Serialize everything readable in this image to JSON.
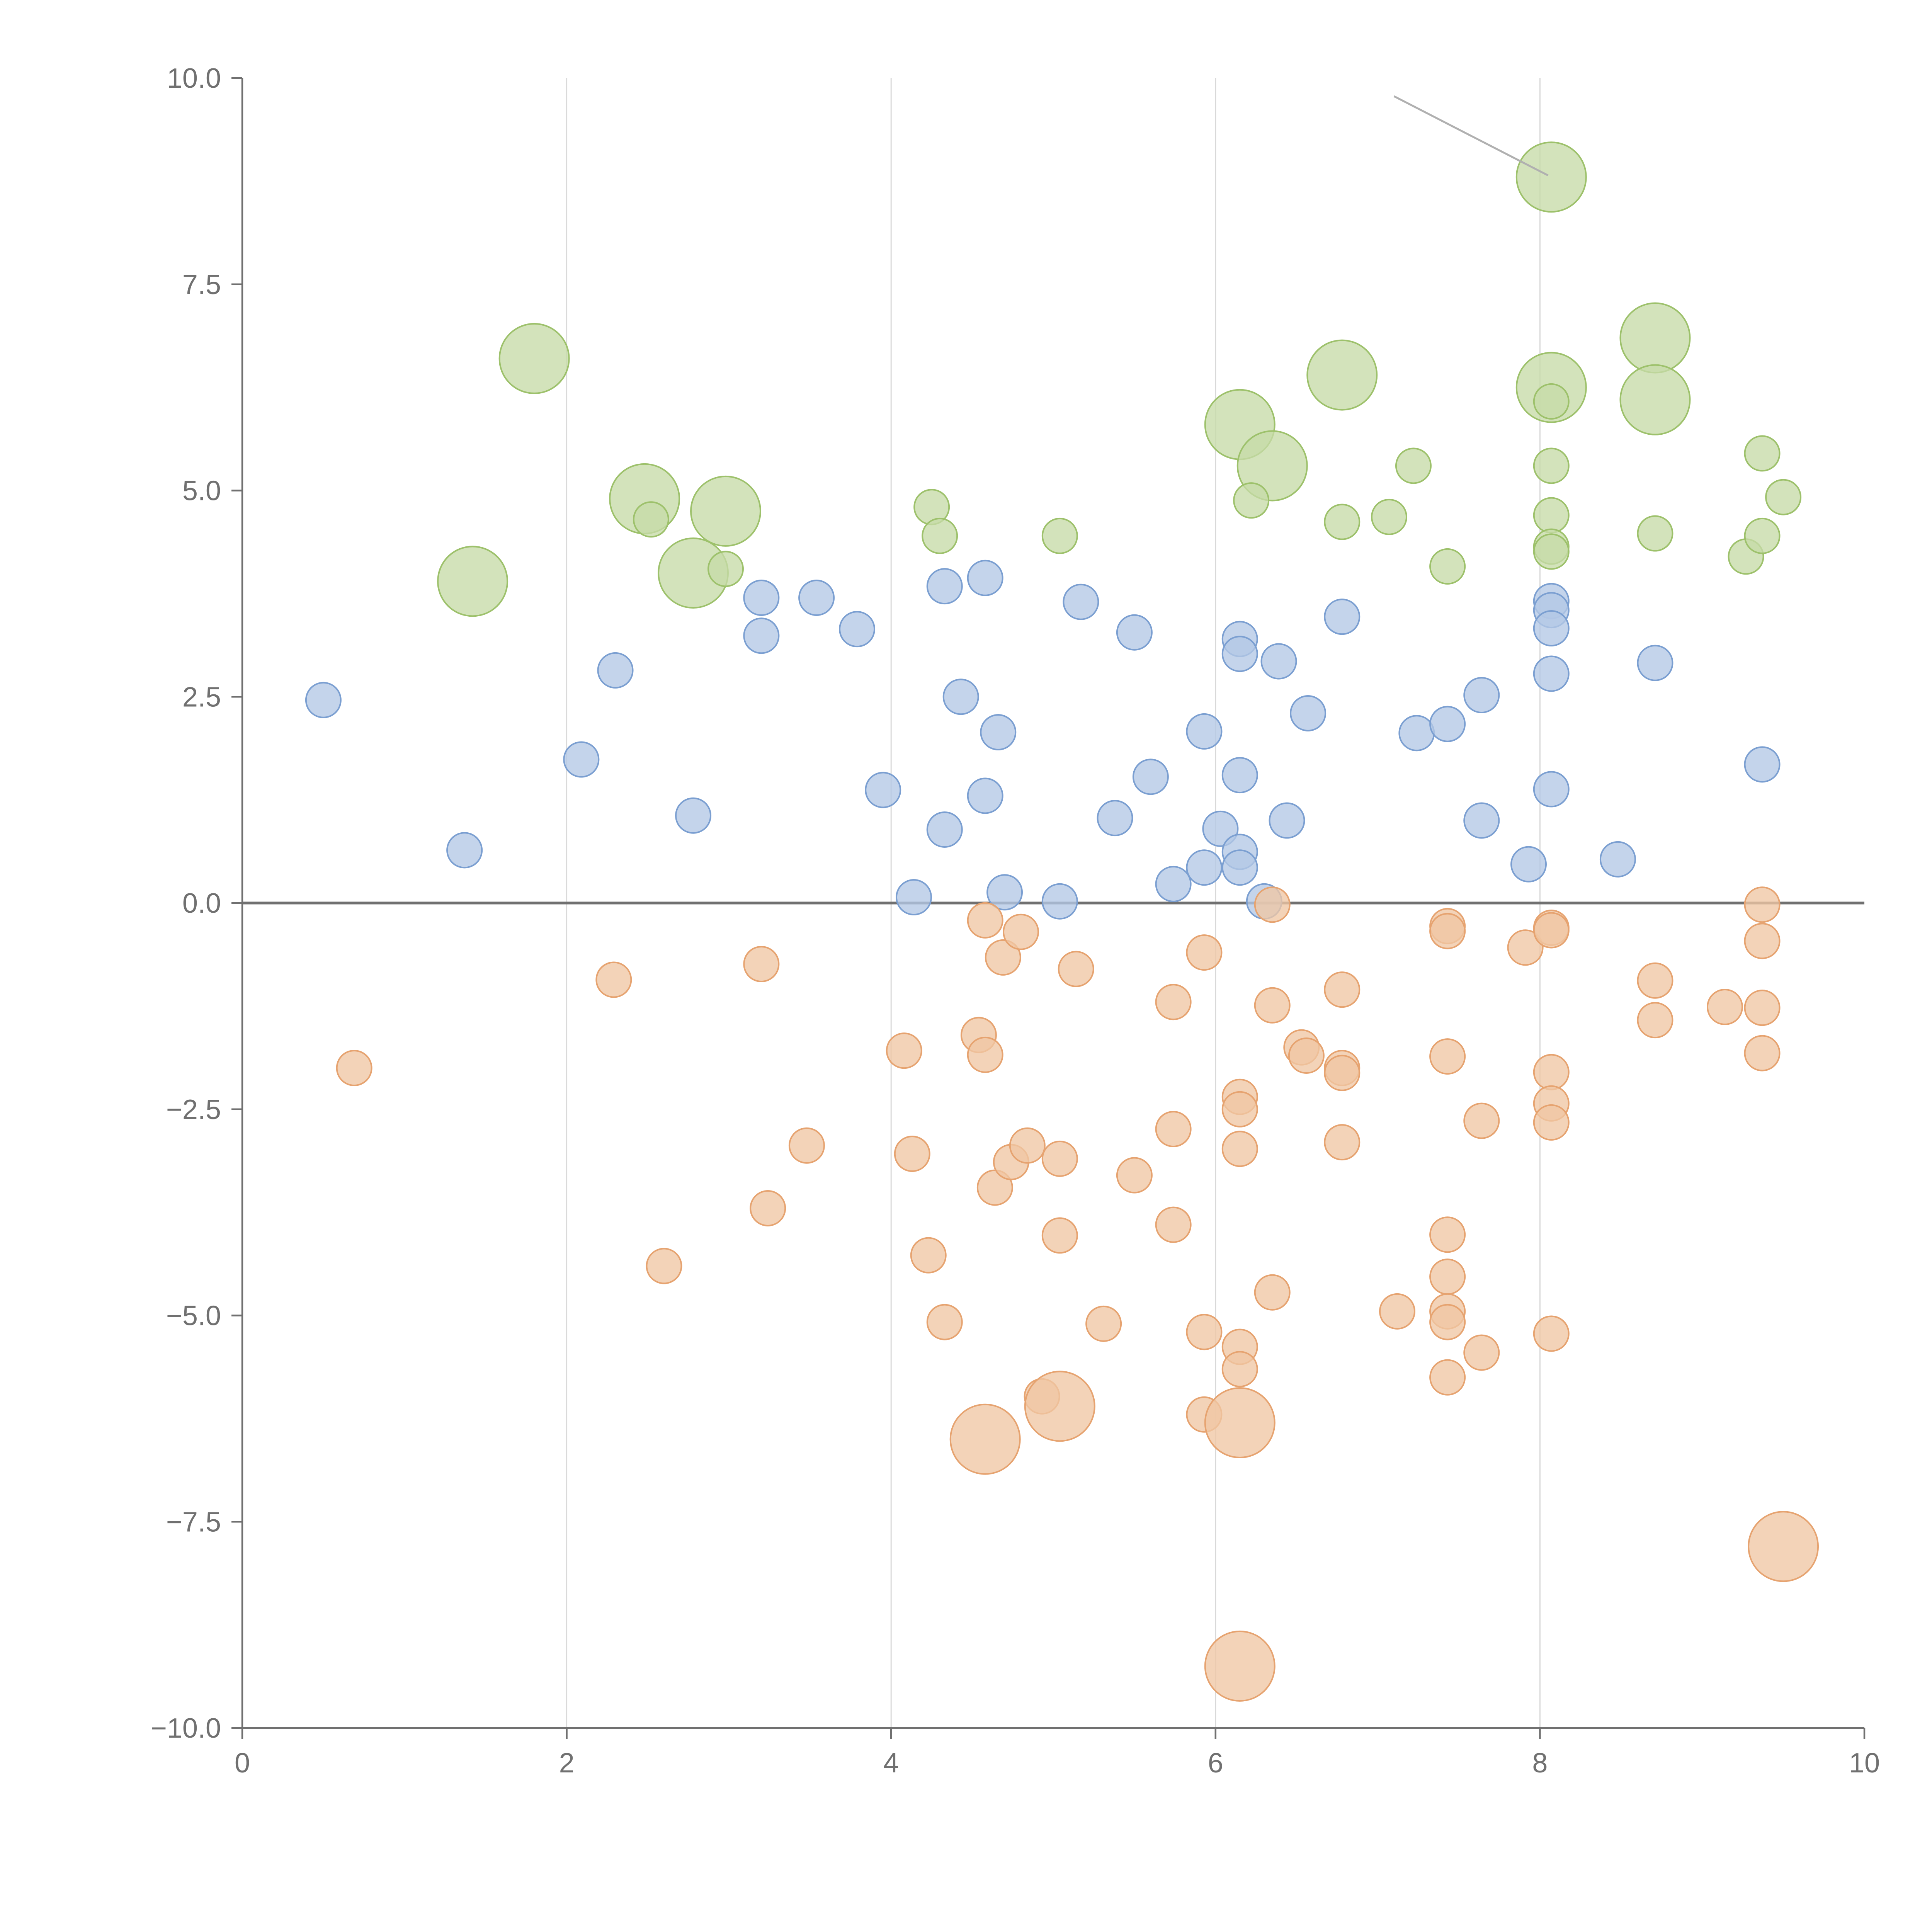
{
  "chart_data": {
    "type": "scatter",
    "title": "",
    "xlabel": "",
    "ylabel": "",
    "xlim": [
      0,
      10
    ],
    "ylim": [
      -10,
      10
    ],
    "x_ticks": [
      0,
      2,
      4,
      6,
      8,
      10
    ],
    "x_tick_labels": [
      "0",
      "2",
      "4",
      "6",
      "8",
      "10"
    ],
    "y_ticks": [
      10,
      7.5,
      5,
      2.5,
      0,
      -2.5,
      -5,
      -7.5,
      -10
    ],
    "y_tick_labels": [
      "10.0",
      "7.5",
      "5.0",
      "2.5",
      "0.0",
      "−2.5",
      "−5.0",
      "−7.5",
      "−10.0"
    ],
    "vertical_grid": true,
    "horizontal_reference_line_at": 0,
    "series": [
      {
        "name": "green",
        "color": "#9dc16b",
        "fill": "#c7dba8",
        "points": [
          [
            1.8,
            6.6,
            2
          ],
          [
            1.42,
            3.9,
            2
          ],
          [
            2.48,
            4.9,
            2
          ],
          [
            2.52,
            4.65,
            1
          ],
          [
            2.98,
            4.75,
            2
          ],
          [
            2.78,
            4.0,
            2
          ],
          [
            2.98,
            4.05,
            1
          ],
          [
            4.25,
            4.8,
            1
          ],
          [
            4.3,
            4.45,
            1
          ],
          [
            5.04,
            4.45,
            1
          ],
          [
            6.15,
            5.8,
            2
          ],
          [
            6.35,
            5.3,
            2
          ],
          [
            6.22,
            4.88,
            1
          ],
          [
            6.78,
            6.4,
            2
          ],
          [
            6.78,
            4.62,
            1
          ],
          [
            7.07,
            4.68,
            1
          ],
          [
            7.22,
            5.3,
            1
          ],
          [
            7.43,
            4.08,
            1
          ],
          [
            8.07,
            8.8,
            2
          ],
          [
            8.07,
            6.25,
            2
          ],
          [
            8.07,
            6.08,
            1
          ],
          [
            8.07,
            5.3,
            1
          ],
          [
            8.07,
            4.7,
            1
          ],
          [
            8.07,
            4.32,
            1
          ],
          [
            8.07,
            4.26,
            1
          ],
          [
            8.71,
            6.85,
            2
          ],
          [
            8.71,
            6.1,
            2
          ],
          [
            8.71,
            4.48,
            1
          ],
          [
            9.27,
            4.2,
            1
          ],
          [
            9.37,
            4.45,
            1
          ],
          [
            9.37,
            5.45,
            1
          ],
          [
            9.5,
            4.92,
            1
          ]
        ]
      },
      {
        "name": "blue",
        "color": "#7b9fd1",
        "fill": "#b3c8e6",
        "points": [
          [
            0.5,
            2.46,
            1
          ],
          [
            1.37,
            0.64,
            1
          ],
          [
            2.09,
            1.74,
            1
          ],
          [
            2.3,
            2.82,
            1
          ],
          [
            2.78,
            1.06,
            1
          ],
          [
            3.2,
            3.7,
            1
          ],
          [
            3.2,
            3.24,
            1
          ],
          [
            3.54,
            3.7,
            1
          ],
          [
            3.79,
            3.32,
            1
          ],
          [
            3.95,
            1.37,
            1
          ],
          [
            4.14,
            0.07,
            1
          ],
          [
            4.33,
            3.84,
            1
          ],
          [
            4.33,
            0.89,
            1
          ],
          [
            4.43,
            2.5,
            1
          ],
          [
            4.58,
            3.94,
            1
          ],
          [
            4.58,
            1.3,
            1
          ],
          [
            4.66,
            2.07,
            1
          ],
          [
            4.7,
            0.13,
            1
          ],
          [
            5.04,
            0.02,
            1
          ],
          [
            5.17,
            3.65,
            1
          ],
          [
            5.38,
            1.03,
            1
          ],
          [
            5.5,
            3.28,
            1
          ],
          [
            5.6,
            1.53,
            1
          ],
          [
            5.74,
            0.23,
            1
          ],
          [
            5.93,
            2.08,
            1
          ],
          [
            5.93,
            0.43,
            1
          ],
          [
            6.03,
            0.9,
            1
          ],
          [
            6.15,
            3.2,
            1
          ],
          [
            6.15,
            3.02,
            1
          ],
          [
            6.15,
            1.55,
            1
          ],
          [
            6.15,
            0.62,
            1
          ],
          [
            6.15,
            0.43,
            1
          ],
          [
            6.3,
            0.02,
            1
          ],
          [
            6.39,
            2.93,
            1
          ],
          [
            6.44,
            1.0,
            1
          ],
          [
            6.57,
            2.3,
            1
          ],
          [
            6.78,
            3.47,
            1
          ],
          [
            7.24,
            2.06,
            1
          ],
          [
            7.43,
            2.17,
            1
          ],
          [
            7.64,
            2.52,
            1
          ],
          [
            7.64,
            1.0,
            1
          ],
          [
            7.93,
            0.47,
            1
          ],
          [
            8.07,
            3.66,
            1
          ],
          [
            8.07,
            3.55,
            1
          ],
          [
            8.07,
            3.33,
            1
          ],
          [
            8.07,
            2.78,
            1
          ],
          [
            8.07,
            1.38,
            1
          ],
          [
            8.48,
            0.53,
            1
          ],
          [
            8.71,
            2.91,
            1
          ],
          [
            9.37,
            1.68,
            1
          ]
        ]
      },
      {
        "name": "orange",
        "color": "#e6a370",
        "fill": "#f0c6a4",
        "points": [
          [
            0.69,
            -2.0,
            1
          ],
          [
            2.29,
            -0.93,
            1
          ],
          [
            2.6,
            -4.4,
            1
          ],
          [
            3.2,
            -0.74,
            1
          ],
          [
            3.24,
            -3.7,
            1
          ],
          [
            3.48,
            -2.94,
            1
          ],
          [
            4.08,
            -1.79,
            1
          ],
          [
            4.13,
            -3.04,
            1
          ],
          [
            4.23,
            -4.27,
            1
          ],
          [
            4.33,
            -5.08,
            1
          ],
          [
            4.54,
            -1.6,
            1
          ],
          [
            4.58,
            -1.84,
            1
          ],
          [
            4.58,
            -0.21,
            1
          ],
          [
            4.58,
            -6.5,
            2
          ],
          [
            4.64,
            -3.45,
            1
          ],
          [
            4.69,
            -0.66,
            1
          ],
          [
            4.74,
            -3.14,
            1
          ],
          [
            4.8,
            -0.35,
            1
          ],
          [
            4.84,
            -2.94,
            1
          ],
          [
            4.93,
            -5.98,
            1
          ],
          [
            5.04,
            -3.1,
            1
          ],
          [
            5.04,
            -4.03,
            1
          ],
          [
            5.04,
            -6.1,
            2
          ],
          [
            5.14,
            -0.8,
            1
          ],
          [
            5.31,
            -5.1,
            1
          ],
          [
            5.5,
            -3.3,
            1
          ],
          [
            5.74,
            -1.2,
            1
          ],
          [
            5.74,
            -2.74,
            1
          ],
          [
            5.74,
            -3.9,
            1
          ],
          [
            5.93,
            -0.6,
            1
          ],
          [
            5.93,
            -5.2,
            1
          ],
          [
            5.93,
            -6.2,
            1
          ],
          [
            6.15,
            -2.35,
            1
          ],
          [
            6.15,
            -2.5,
            1
          ],
          [
            6.15,
            -2.98,
            1
          ],
          [
            6.15,
            -5.38,
            1
          ],
          [
            6.15,
            -5.65,
            1
          ],
          [
            6.15,
            -6.3,
            2
          ],
          [
            6.15,
            -9.25,
            2
          ],
          [
            6.35,
            -0.02,
            1
          ],
          [
            6.35,
            -1.24,
            1
          ],
          [
            6.35,
            -4.72,
            1
          ],
          [
            6.53,
            -1.75,
            1
          ],
          [
            6.56,
            -1.85,
            1
          ],
          [
            6.78,
            -1.05,
            1
          ],
          [
            6.78,
            -2.0,
            1
          ],
          [
            6.78,
            -2.06,
            1
          ],
          [
            6.78,
            -2.9,
            1
          ],
          [
            7.12,
            -4.95,
            1
          ],
          [
            7.43,
            -0.28,
            1
          ],
          [
            7.43,
            -0.34,
            1
          ],
          [
            7.43,
            -1.86,
            1
          ],
          [
            7.43,
            -4.02,
            1
          ],
          [
            7.43,
            -4.53,
            1
          ],
          [
            7.43,
            -4.95,
            1
          ],
          [
            7.43,
            -5.08,
            1
          ],
          [
            7.43,
            -5.75,
            1
          ],
          [
            7.64,
            -2.64,
            1
          ],
          [
            7.64,
            -5.45,
            1
          ],
          [
            7.91,
            -0.54,
            1
          ],
          [
            8.07,
            -0.3,
            1
          ],
          [
            8.07,
            -0.33,
            1
          ],
          [
            8.07,
            -2.05,
            1
          ],
          [
            8.07,
            -2.43,
            1
          ],
          [
            8.07,
            -2.66,
            1
          ],
          [
            8.07,
            -5.22,
            1
          ],
          [
            8.71,
            -0.94,
            1
          ],
          [
            8.71,
            -1.42,
            1
          ],
          [
            9.14,
            -1.26,
            1
          ],
          [
            9.37,
            -0.02,
            1
          ],
          [
            9.37,
            -0.46,
            1
          ],
          [
            9.37,
            -1.27,
            1
          ],
          [
            9.37,
            -1.82,
            1
          ],
          [
            9.5,
            -7.8,
            2
          ]
        ]
      }
    ],
    "annotations": [
      {
        "type": "leader-line",
        "from": [
          7.1,
          9.78
        ],
        "to": [
          8.05,
          8.82
        ]
      }
    ]
  }
}
